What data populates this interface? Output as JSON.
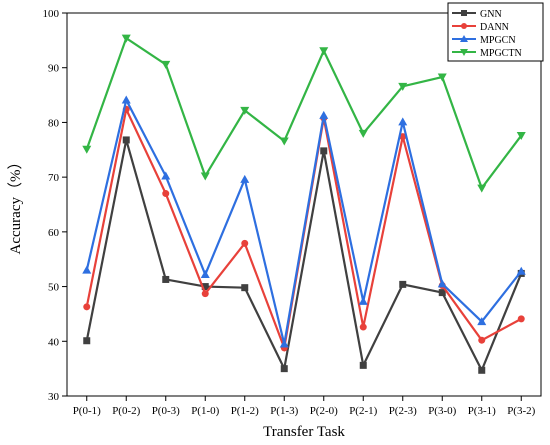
{
  "chart_data": {
    "type": "line",
    "title": "",
    "xlabel": "Transfer Task",
    "ylabel": "Accuracy（%）",
    "categories": [
      "P(0-1)",
      "P(0-2)",
      "P(0-3)",
      "P(1-0)",
      "P(1-2)",
      "P(1-3)",
      "P(2-0)",
      "P(2-1)",
      "P(2-3)",
      "P(3-0)",
      "P(3-1)",
      "P(3-2)"
    ],
    "ylim": [
      30,
      100
    ],
    "yticks": [
      30,
      40,
      50,
      60,
      70,
      80,
      90,
      100
    ],
    "grid": false,
    "legend_position": "top-right",
    "series": [
      {
        "name": "GNN",
        "color": "#404040",
        "marker": "square",
        "values": [
          40.1,
          76.8,
          51.3,
          50.0,
          49.8,
          35.0,
          74.8,
          35.6,
          50.4,
          48.9,
          34.7,
          52.4
        ]
      },
      {
        "name": "DANN",
        "color": "#e8413a",
        "marker": "circle",
        "values": [
          46.3,
          82.4,
          67.0,
          48.7,
          57.9,
          38.8,
          80.8,
          42.6,
          77.4,
          50.2,
          40.2,
          44.1
        ]
      },
      {
        "name": "MPGCN",
        "color": "#2e6fe0",
        "marker": "triangle-up",
        "values": [
          53.0,
          84.1,
          70.2,
          52.2,
          69.6,
          39.5,
          81.3,
          47.3,
          80.1,
          50.5,
          43.6,
          52.8
        ]
      },
      {
        "name": "MPGCTN",
        "color": "#33b545",
        "marker": "triangle-down",
        "values": [
          75.1,
          95.4,
          90.6,
          70.2,
          82.2,
          76.6,
          93.1,
          78.0,
          86.6,
          88.3,
          68.0,
          77.6
        ]
      }
    ]
  }
}
